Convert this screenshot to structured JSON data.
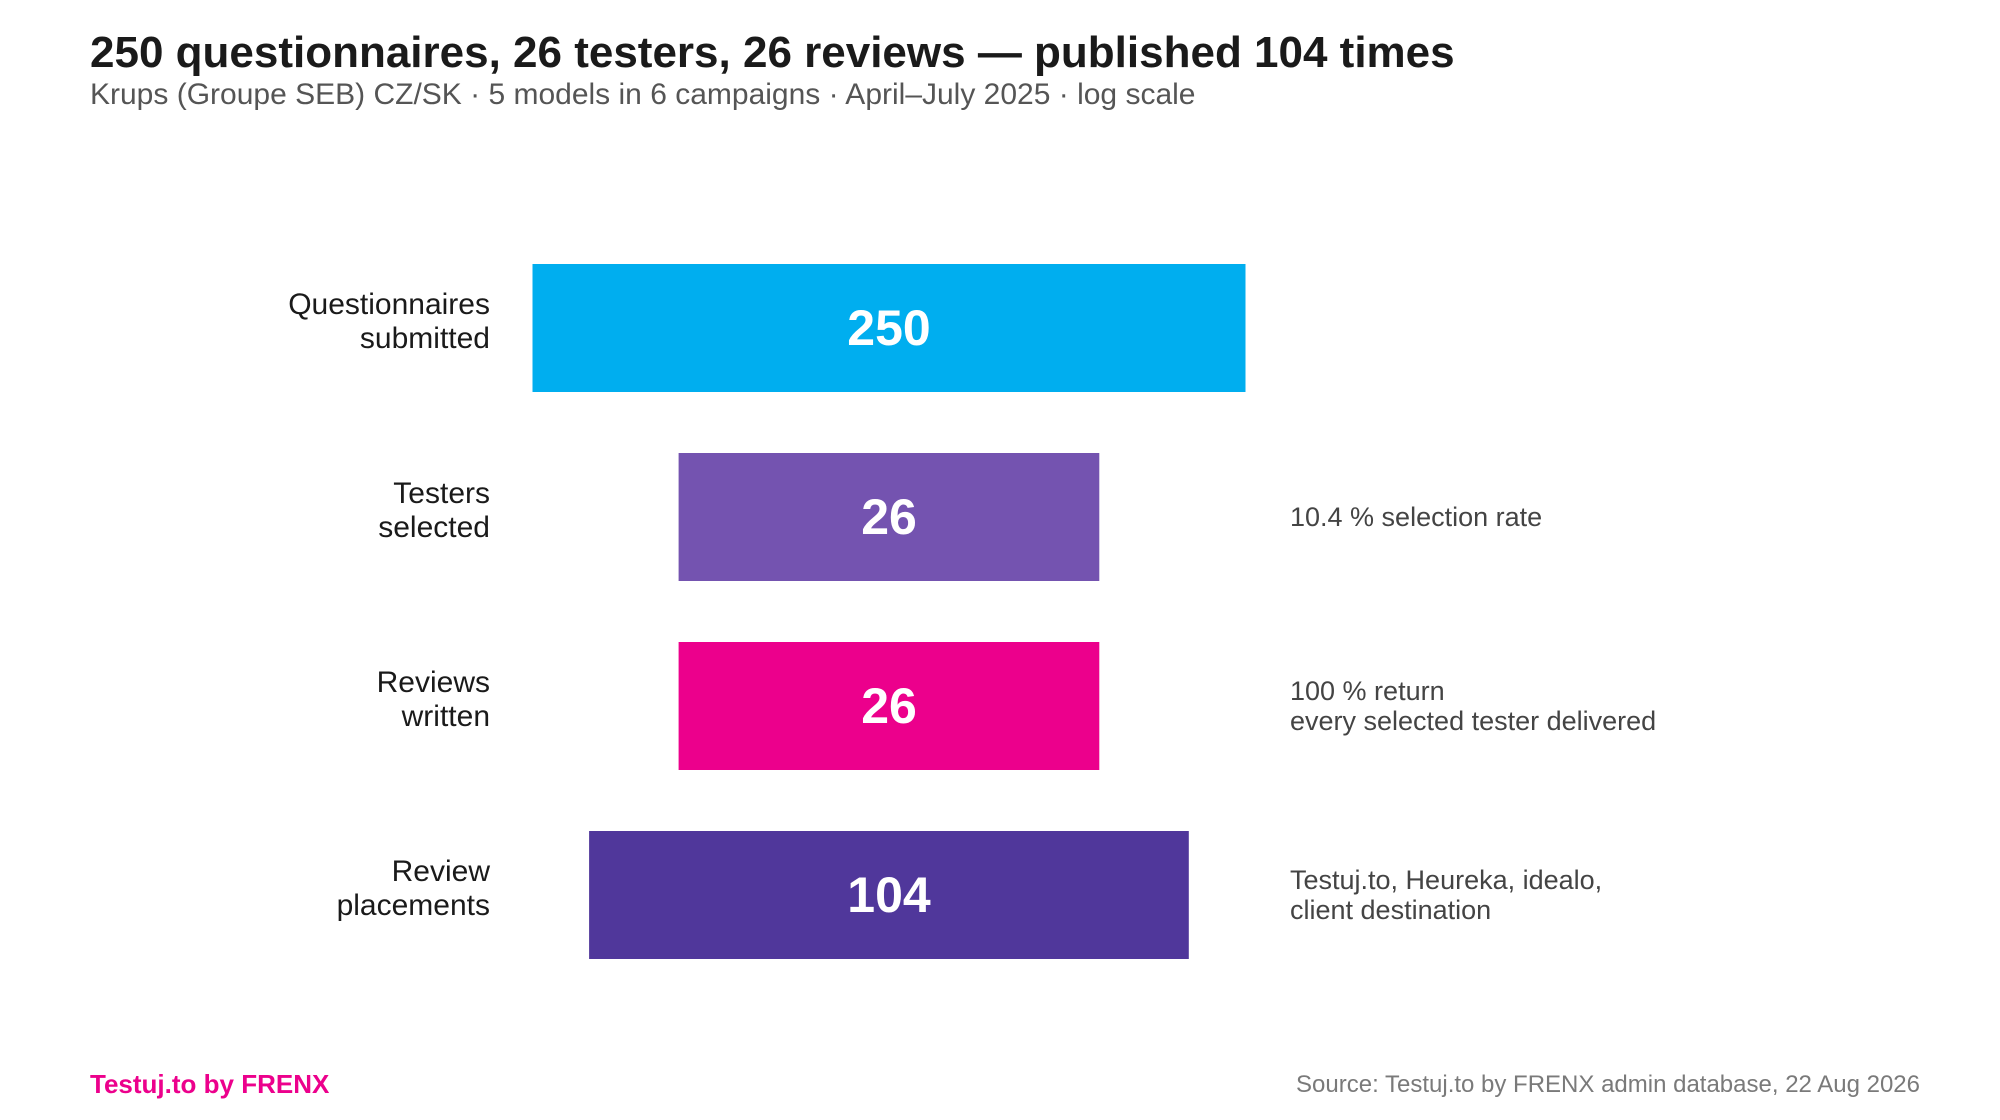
{
  "header": {
    "title": "250 questionnaires, 26 testers, 26 reviews — published 104 times",
    "subtitle": "Krups (Groupe SEB) CZ/SK · 5 models in 6 campaigns · April–July 2025 · log scale"
  },
  "footer": {
    "brand": "Testuj.to by FRENX",
    "source": "Source: Testuj.to by FRENX admin database, 22 Aug 2026"
  },
  "chart_data": {
    "type": "bar",
    "orientation": "horizontal-funnel",
    "scale": "log",
    "categories": [
      [
        "Questionnaires",
        "submitted"
      ],
      [
        "Testers",
        "selected"
      ],
      [
        "Reviews",
        "written"
      ],
      [
        "Review",
        "placements"
      ]
    ],
    "values": [
      250,
      26,
      26,
      104
    ],
    "colors": [
      "#00aeef",
      "#7453b0",
      "#ec008c",
      "#50379b"
    ],
    "annotations": [
      [],
      [
        "10.4 % selection rate"
      ],
      [
        "100 % return",
        "every selected tester delivered"
      ],
      [
        "Testuj.to, Heureka, idealo,",
        "client destination"
      ]
    ]
  }
}
